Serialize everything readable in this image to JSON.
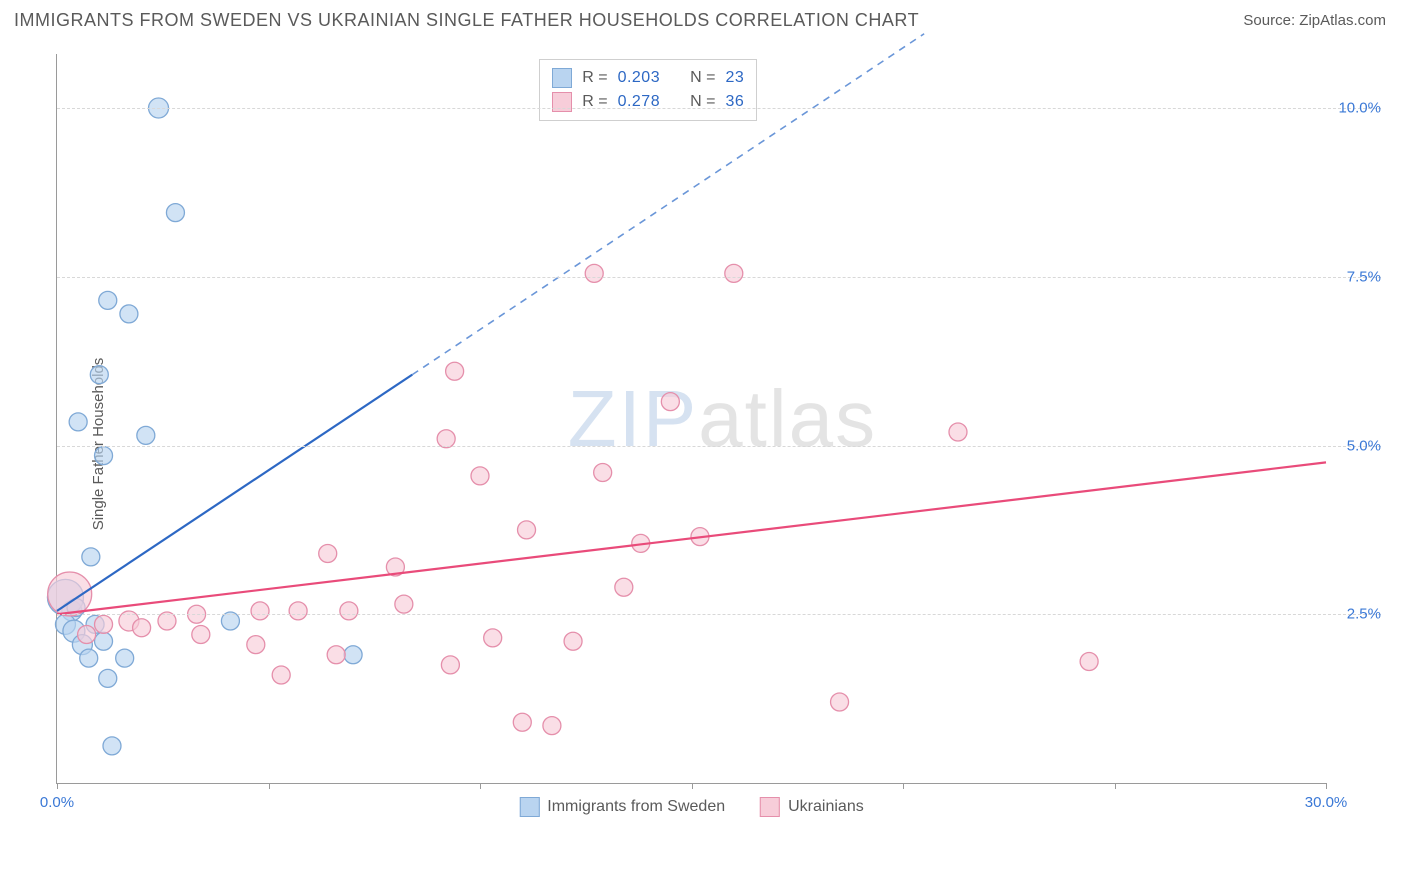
{
  "title": "IMMIGRANTS FROM SWEDEN VS UKRAINIAN SINGLE FATHER HOUSEHOLDS CORRELATION CHART",
  "source_prefix": "Source: ",
  "source_link": "ZipAtlas.com",
  "ylabel": "Single Father Households",
  "watermark_a": "ZIP",
  "watermark_b": "atlas",
  "chart": {
    "type": "scatter",
    "xlim": [
      0,
      30
    ],
    "ylim": [
      0,
      10.8
    ],
    "x_ticks": [
      0,
      5,
      10,
      15,
      20,
      25,
      30
    ],
    "x_tick_labels": {
      "0": "0.0%",
      "30": "30.0%"
    },
    "y_gridlines": [
      2.5,
      5.0,
      7.5,
      10.0
    ],
    "y_tick_labels": [
      "2.5%",
      "5.0%",
      "7.5%",
      "10.0%"
    ],
    "x_label_color": "#3a78d6",
    "y_label_color": "#3a78d6",
    "grid_color": "#d8d8d8",
    "axis_color": "#9a9a9a",
    "background_color": "#ffffff"
  },
  "series": [
    {
      "name": "Immigrants from Sweden",
      "fill": "#b9d4f0",
      "stroke": "#7fa9d6",
      "line_color": "#2d68c4",
      "dash_color": "#6a96d8",
      "r_label": "R =",
      "n_label": "N =",
      "r_value": "0.203",
      "n_value": "23",
      "trend_solid": {
        "x1": 0,
        "y1": 2.55,
        "x2": 8.4,
        "y2": 6.05
      },
      "trend_dash": {
        "x1": 8.4,
        "y1": 6.05,
        "x2": 20.5,
        "y2": 11.1
      },
      "points": [
        {
          "x": 2.4,
          "y": 10.0,
          "r": 10
        },
        {
          "x": 2.8,
          "y": 8.45,
          "r": 9
        },
        {
          "x": 1.2,
          "y": 7.15,
          "r": 9
        },
        {
          "x": 1.7,
          "y": 6.95,
          "r": 9
        },
        {
          "x": 1.0,
          "y": 6.05,
          "r": 9
        },
        {
          "x": 0.5,
          "y": 5.35,
          "r": 9
        },
        {
          "x": 2.1,
          "y": 5.15,
          "r": 9
        },
        {
          "x": 1.1,
          "y": 4.85,
          "r": 9
        },
        {
          "x": 0.8,
          "y": 3.35,
          "r": 9
        },
        {
          "x": 0.35,
          "y": 2.55,
          "r": 10
        },
        {
          "x": 0.2,
          "y": 2.35,
          "r": 10
        },
        {
          "x": 0.4,
          "y": 2.25,
          "r": 11
        },
        {
          "x": 0.9,
          "y": 2.35,
          "r": 9
        },
        {
          "x": 0.6,
          "y": 2.05,
          "r": 10
        },
        {
          "x": 1.1,
          "y": 2.1,
          "r": 9
        },
        {
          "x": 1.6,
          "y": 1.85,
          "r": 9
        },
        {
          "x": 0.75,
          "y": 1.85,
          "r": 9
        },
        {
          "x": 1.2,
          "y": 1.55,
          "r": 9
        },
        {
          "x": 4.1,
          "y": 2.4,
          "r": 9
        },
        {
          "x": 7.0,
          "y": 1.9,
          "r": 9
        },
        {
          "x": 1.3,
          "y": 0.55,
          "r": 9
        },
        {
          "x": 0.2,
          "y": 2.75,
          "r": 18
        },
        {
          "x": 0.45,
          "y": 2.6,
          "r": 9
        }
      ]
    },
    {
      "name": "Ukrainians",
      "fill": "#f7cdd9",
      "stroke": "#e58fab",
      "line_color": "#e94b7a",
      "r_label": "R =",
      "n_label": "N =",
      "r_value": "0.278",
      "n_value": "36",
      "trend_solid": {
        "x1": 0,
        "y1": 2.5,
        "x2": 30,
        "y2": 4.75
      },
      "points": [
        {
          "x": 12.7,
          "y": 7.55,
          "r": 9
        },
        {
          "x": 16.0,
          "y": 7.55,
          "r": 9
        },
        {
          "x": 14.5,
          "y": 5.65,
          "r": 9
        },
        {
          "x": 9.4,
          "y": 6.1,
          "r": 9
        },
        {
          "x": 9.2,
          "y": 5.1,
          "r": 9
        },
        {
          "x": 21.3,
          "y": 5.2,
          "r": 9
        },
        {
          "x": 10.0,
          "y": 4.55,
          "r": 9
        },
        {
          "x": 12.9,
          "y": 4.6,
          "r": 9
        },
        {
          "x": 11.1,
          "y": 3.75,
          "r": 9
        },
        {
          "x": 13.8,
          "y": 3.55,
          "r": 9
        },
        {
          "x": 15.2,
          "y": 3.65,
          "r": 9
        },
        {
          "x": 6.4,
          "y": 3.4,
          "r": 9
        },
        {
          "x": 8.0,
          "y": 3.2,
          "r": 9
        },
        {
          "x": 13.4,
          "y": 2.9,
          "r": 9
        },
        {
          "x": 1.1,
          "y": 2.35,
          "r": 9
        },
        {
          "x": 1.7,
          "y": 2.4,
          "r": 10
        },
        {
          "x": 2.0,
          "y": 2.3,
          "r": 9
        },
        {
          "x": 2.6,
          "y": 2.4,
          "r": 9
        },
        {
          "x": 3.3,
          "y": 2.5,
          "r": 9
        },
        {
          "x": 3.4,
          "y": 2.2,
          "r": 9
        },
        {
          "x": 4.8,
          "y": 2.55,
          "r": 9
        },
        {
          "x": 5.7,
          "y": 2.55,
          "r": 9
        },
        {
          "x": 4.7,
          "y": 2.05,
          "r": 9
        },
        {
          "x": 6.9,
          "y": 2.55,
          "r": 9
        },
        {
          "x": 6.6,
          "y": 1.9,
          "r": 9
        },
        {
          "x": 8.2,
          "y": 2.65,
          "r": 9
        },
        {
          "x": 9.3,
          "y": 1.75,
          "r": 9
        },
        {
          "x": 10.3,
          "y": 2.15,
          "r": 9
        },
        {
          "x": 12.2,
          "y": 2.1,
          "r": 9
        },
        {
          "x": 5.3,
          "y": 1.6,
          "r": 9
        },
        {
          "x": 11.0,
          "y": 0.9,
          "r": 9
        },
        {
          "x": 11.7,
          "y": 0.85,
          "r": 9
        },
        {
          "x": 18.5,
          "y": 1.2,
          "r": 9
        },
        {
          "x": 24.4,
          "y": 1.8,
          "r": 9
        },
        {
          "x": 0.3,
          "y": 2.8,
          "r": 22
        },
        {
          "x": 0.7,
          "y": 2.2,
          "r": 9
        }
      ]
    }
  ],
  "bottom_legend": [
    {
      "label": "Immigrants from Sweden",
      "fill": "#b9d4f0",
      "stroke": "#7fa9d6"
    },
    {
      "label": "Ukrainians",
      "fill": "#f7cdd9",
      "stroke": "#e58fab"
    }
  ]
}
